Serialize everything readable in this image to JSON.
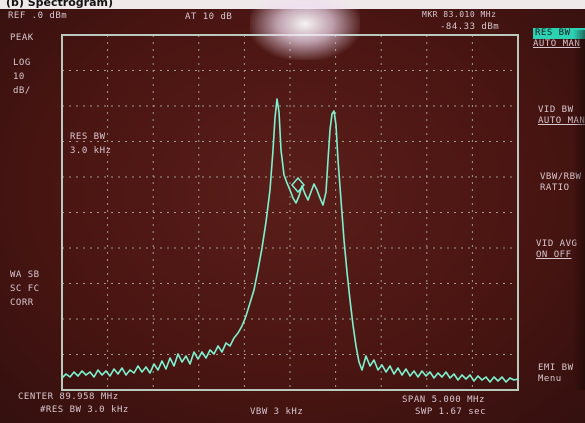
{
  "top_caption": "(b) Spectrogram)",
  "header": {
    "ref_level": "REF  .0 dBm",
    "atten": "AT 10 dB",
    "marker_freq": "MKR 83.010 MHz",
    "marker_level": "-84.33 dBm"
  },
  "left_panel": {
    "detector": "PEAK",
    "scale_mode": "LOG",
    "scale_value": "10",
    "scale_unit": "dB/",
    "correction_line1": "WA SB",
    "correction_line2": "SC FC",
    "correction_line3": "CORR"
  },
  "annotation": {
    "res_bw_label": "RES BW",
    "res_bw_value": "3.0 kHz"
  },
  "softkeys": [
    {
      "line1": "RES BW",
      "line2": "AUTO MAN"
    },
    {
      "line1": "VID BW",
      "line2": "AUTO MAN"
    },
    {
      "line1": "VBW/RBW",
      "line2": "RATIO"
    },
    {
      "line1": "VID AVG",
      "line2": "ON  OFF"
    },
    {
      "line1": "EMI BW",
      "line2": "Menu"
    }
  ],
  "footer": {
    "center": "CENTER 89.958 MHz",
    "span": "SPAN 5.000 MHz",
    "res_bw": "#RES BW 3.0 kHz",
    "vbw": "VBW 3 kHz",
    "sweep": "SWP 1.67 sec"
  },
  "colors": {
    "trace": "#7ef2cf",
    "graticule": "#b9c9bd",
    "screen_bg": "#4a1512"
  }
}
